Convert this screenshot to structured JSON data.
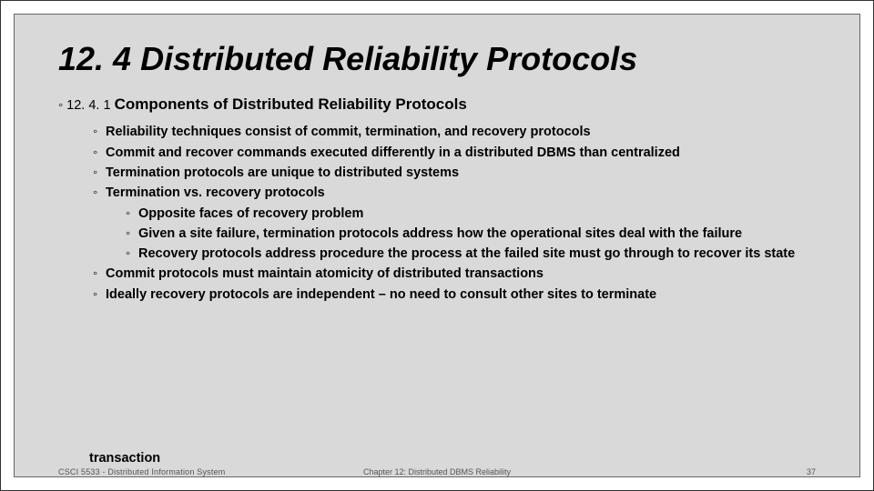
{
  "title": "12. 4 Distributed Reliability Protocols",
  "section": {
    "num": "12. 4. 1",
    "title": "Components of Distributed Reliability Protocols"
  },
  "bullets": [
    {
      "lvl": 1,
      "text": "Reliability techniques consist of commit, termination, and recovery protocols"
    },
    {
      "lvl": 1,
      "text": "Commit and recover commands executed differently in a distributed DBMS than centralized"
    },
    {
      "lvl": 1,
      "text": "Termination protocols are unique to distributed systems"
    },
    {
      "lvl": 1,
      "text": "Termination vs. recovery protocols"
    },
    {
      "lvl": 2,
      "text": "Opposite faces of recovery problem"
    },
    {
      "lvl": 2,
      "text": "Given a site failure, termination protocols address how the operational sites deal with the failure"
    },
    {
      "lvl": 2,
      "text": "Recovery protocols address procedure the process at the failed site must go through to recover its state"
    },
    {
      "lvl": 1,
      "text": "Commit protocols must maintain atomicity of distributed transactions"
    },
    {
      "lvl": 1,
      "text": "Ideally recovery protocols are independent – no need to consult other sites to terminate"
    }
  ],
  "overflow_word": "transaction",
  "footer": {
    "left_stub": "CSCI 5533 - Distributed Information System",
    "center": "Chapter 12: Distributed DBMS Reliability",
    "page": "37"
  },
  "colors": {
    "slide_bg": "#d9d9d9",
    "text": "#000000",
    "footer_text": "#555555"
  }
}
